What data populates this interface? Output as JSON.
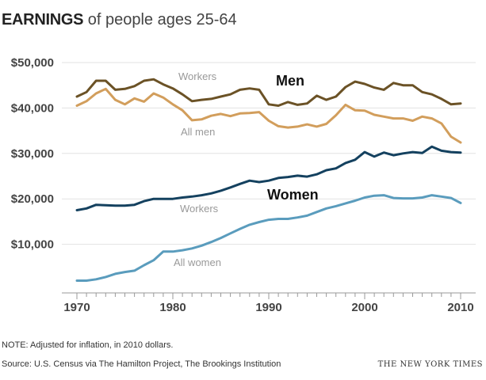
{
  "title": {
    "bold": "EARNINGS",
    "rest": " of people ages 25-64"
  },
  "note": "NOTE: Adjusted for inflation, in 2010 dollars.",
  "source": "Source: U.S. Census via The Hamilton Project, The Brookings Institution",
  "credit": "THE NEW YORK TIMES",
  "chart_data": {
    "type": "line",
    "title": "EARNINGS of people ages 25-64",
    "xlabel": "",
    "ylabel": "",
    "xlim": [
      1969,
      2011
    ],
    "ylim": [
      0,
      52000
    ],
    "x_ticks": [
      1970,
      1980,
      1990,
      2000,
      2010
    ],
    "x_tick_labels": [
      "1970",
      "1980",
      "1990",
      "2000",
      "2010"
    ],
    "y_ticks": [
      10000,
      20000,
      30000,
      40000,
      50000
    ],
    "y_tick_labels": [
      "$10,000",
      "$20,000",
      "$30,000",
      "$40,000",
      "$50,000"
    ],
    "grid": true,
    "x": [
      1970,
      1971,
      1972,
      1973,
      1974,
      1975,
      1976,
      1977,
      1978,
      1979,
      1980,
      1981,
      1982,
      1983,
      1984,
      1985,
      1986,
      1987,
      1988,
      1989,
      1990,
      1991,
      1992,
      1993,
      1994,
      1995,
      1996,
      1997,
      1998,
      1999,
      2000,
      2001,
      2002,
      2003,
      2004,
      2005,
      2006,
      2007,
      2008,
      2009,
      2010
    ],
    "series": [
      {
        "name": "Men - Workers",
        "color": "#6b5226",
        "values": [
          42500,
          43500,
          46000,
          46000,
          44000,
          44200,
          44800,
          46000,
          46300,
          45200,
          44300,
          43000,
          41500,
          41800,
          42000,
          42500,
          43000,
          44000,
          44300,
          44000,
          40800,
          40500,
          41300,
          40700,
          41000,
          42700,
          41800,
          42500,
          44600,
          45800,
          45300,
          44500,
          44000,
          45500,
          45000,
          45000,
          43500,
          43000,
          42000,
          40800,
          41000
        ]
      },
      {
        "name": "Men - All men",
        "color": "#d29e5c",
        "values": [
          40500,
          41500,
          43200,
          44200,
          41800,
          40800,
          42100,
          41400,
          43200,
          42300,
          40800,
          39500,
          37300,
          37500,
          38300,
          38700,
          38200,
          38800,
          38900,
          39100,
          37200,
          36000,
          35700,
          35900,
          36400,
          35900,
          36500,
          38400,
          40700,
          39500,
          39400,
          38500,
          38100,
          37700,
          37700,
          37200,
          38100,
          37700,
          36600,
          33700,
          32400
        ]
      },
      {
        "name": "Women - Workers",
        "color": "#14415f",
        "values": [
          17500,
          17900,
          18700,
          18600,
          18500,
          18500,
          18700,
          19500,
          20000,
          20000,
          20000,
          20300,
          20500,
          20800,
          21200,
          21800,
          22500,
          23300,
          24000,
          23700,
          24000,
          24600,
          24800,
          25100,
          24900,
          25400,
          26300,
          26700,
          27900,
          28600,
          30300,
          29300,
          30200,
          29600,
          30000,
          30300,
          30100,
          31500,
          30600,
          30300,
          30200
        ]
      },
      {
        "name": "Women - All women",
        "color": "#5a9cbd",
        "values": [
          2000,
          2000,
          2300,
          2800,
          3500,
          3900,
          4200,
          5400,
          6500,
          8400,
          8400,
          8700,
          9100,
          9700,
          10500,
          11400,
          12400,
          13400,
          14300,
          14900,
          15400,
          15600,
          15600,
          15900,
          16300,
          17100,
          17900,
          18400,
          19000,
          19600,
          20300,
          20700,
          20800,
          20200,
          20100,
          20100,
          20300,
          20800,
          20500,
          20200,
          19100
        ]
      }
    ],
    "annotations": [
      {
        "text": "Workers",
        "near": "Men - Workers",
        "style": "light"
      },
      {
        "text": "Men",
        "near": "Men - Workers",
        "style": "bold"
      },
      {
        "text": "All men",
        "near": "Men - All men",
        "style": "light"
      },
      {
        "text": "Women",
        "near": "Women - Workers",
        "style": "bold"
      },
      {
        "text": "Workers",
        "near": "Women - Workers",
        "style": "light"
      },
      {
        "text": "All women",
        "near": "Women - All women",
        "style": "light"
      }
    ]
  }
}
